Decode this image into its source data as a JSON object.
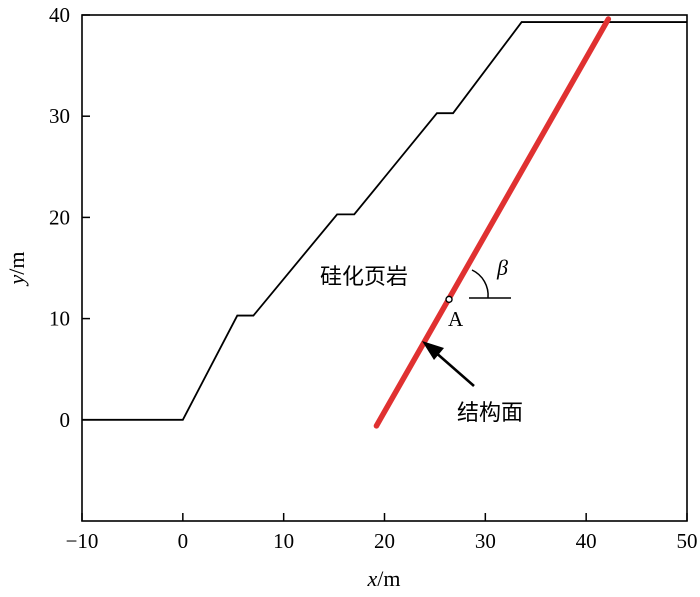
{
  "chart_data": {
    "type": "line",
    "xlabel": {
      "var": "x",
      "unit": "/m"
    },
    "ylabel": {
      "var": "y",
      "unit": "/m"
    },
    "xlim": [
      -10,
      50
    ],
    "ylim": [
      -10,
      40
    ],
    "xticks": [
      -10,
      0,
      10,
      20,
      30,
      40,
      50
    ],
    "yticks": [
      0,
      10,
      20,
      30,
      40
    ],
    "xtick_labels": [
      "−10",
      "0",
      "10",
      "20",
      "30",
      "40",
      "50"
    ],
    "ytick_labels": [
      "0",
      "10",
      "20",
      "30",
      "40"
    ],
    "grid": false,
    "series": [
      {
        "color": "#000000",
        "x": [
          -10,
          0,
          5.4,
          7.0,
          15.3,
          17.0,
          25.2,
          26.8,
          33.6,
          50
        ],
        "y": [
          0,
          0,
          10.3,
          10.3,
          20.3,
          20.3,
          30.3,
          30.3,
          39.3,
          39.3
        ]
      },
      {
        "color": "#e03131",
        "x": [
          19.2,
          42.2
        ],
        "y": [
          -0.6,
          39.6
        ]
      }
    ],
    "annotations": {
      "rock_label": "硅化页岩",
      "point_label": "A",
      "point": [
        26.4,
        11.9
      ],
      "angle_label": "β",
      "structure_label": "结构面"
    }
  }
}
